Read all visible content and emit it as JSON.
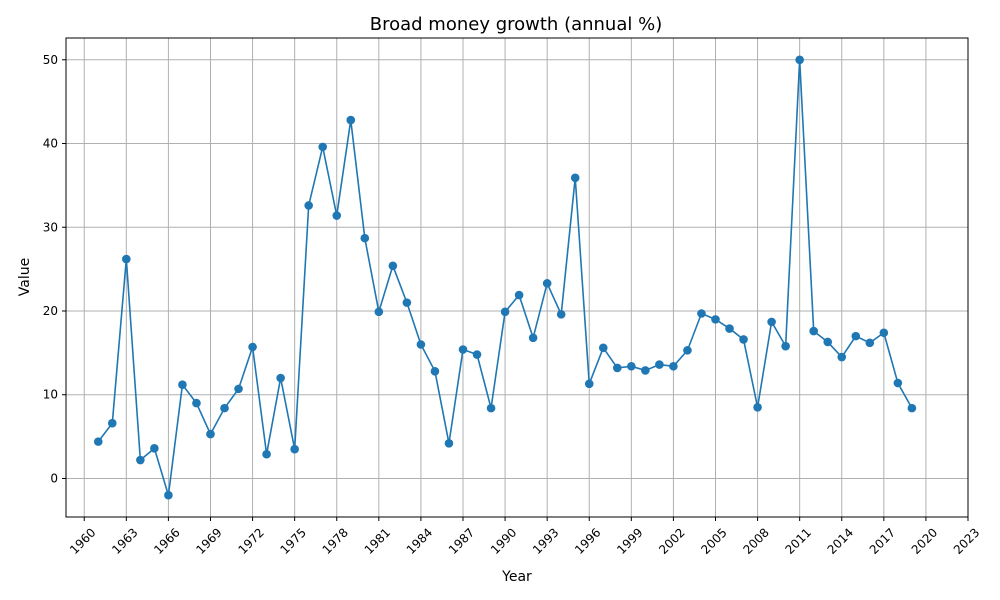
{
  "chart_data": {
    "type": "line",
    "title": "Broad money growth (annual %)",
    "xlabel": "Year",
    "ylabel": "Value",
    "xlim": [
      1958.7,
      2023
    ],
    "ylim": [
      -4.6,
      52.6
    ],
    "x_ticks": [
      1960,
      1963,
      1966,
      1969,
      1972,
      1975,
      1978,
      1981,
      1984,
      1987,
      1990,
      1993,
      1996,
      1999,
      2002,
      2005,
      2008,
      2011,
      2014,
      2017,
      2020,
      2023
    ],
    "y_ticks": [
      0,
      10,
      20,
      30,
      40,
      50
    ],
    "grid": true,
    "color": "#1f77b4",
    "series": [
      {
        "x": [
          1961,
          1962,
          1963,
          1964,
          1965,
          1966,
          1967,
          1968,
          1969,
          1970,
          1971,
          1972,
          1973,
          1974,
          1975,
          1976,
          1977,
          1978,
          1979,
          1980,
          1981,
          1982,
          1983,
          1984,
          1985,
          1986,
          1987,
          1988,
          1989,
          1990,
          1991,
          1992,
          1993,
          1994,
          1995,
          1996,
          1997,
          1998,
          1999,
          2000,
          2001,
          2002,
          2003,
          2004,
          2005,
          2006,
          2007,
          2008,
          2009,
          2010,
          2011,
          2012,
          2013,
          2014,
          2015,
          2016,
          2017,
          2018,
          2019
        ],
        "y": [
          4.4,
          6.6,
          26.2,
          2.2,
          3.6,
          -2.0,
          11.2,
          9.0,
          5.3,
          8.4,
          10.7,
          15.7,
          2.9,
          12.0,
          3.5,
          32.6,
          39.6,
          31.4,
          42.8,
          28.7,
          19.9,
          25.4,
          21.0,
          16.0,
          12.8,
          4.2,
          15.4,
          14.8,
          8.4,
          19.9,
          21.9,
          16.8,
          23.3,
          19.6,
          35.9,
          11.3,
          15.6,
          13.2,
          13.4,
          12.9,
          13.6,
          13.4,
          15.3,
          19.7,
          19.0,
          17.9,
          16.6,
          8.5,
          18.7,
          15.8,
          50.0,
          17.6,
          16.3,
          14.5,
          17.0,
          16.2,
          17.4,
          11.4,
          8.4
        ]
      }
    ]
  }
}
